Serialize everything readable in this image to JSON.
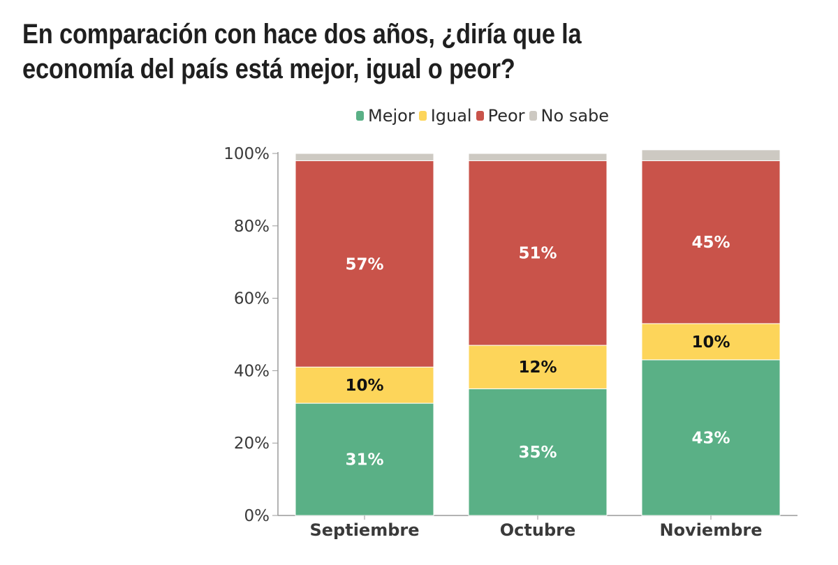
{
  "chart_data": {
    "type": "bar",
    "stacked": true,
    "title": "En comparación con hace dos años, ¿diría que la economía del país está mejor, igual o peor?",
    "categories": [
      "Septiembre",
      "Octubre",
      "Noviembre"
    ],
    "series": [
      {
        "name": "Mejor",
        "color": "#5ab086",
        "values": [
          31,
          35,
          43
        ],
        "labels": [
          "31%",
          "35%",
          "43%"
        ],
        "label_color": "#ffffff"
      },
      {
        "name": "Igual",
        "color": "#fdd55a",
        "values": [
          10,
          12,
          10
        ],
        "labels": [
          "10%",
          "12%",
          "10%"
        ],
        "label_color": "#111111"
      },
      {
        "name": "Peor",
        "color": "#c9534a",
        "values": [
          57,
          51,
          45
        ],
        "labels": [
          "57%",
          "51%",
          "45%"
        ],
        "label_color": "#ffffff"
      },
      {
        "name": "No sabe",
        "color": "#cdc9c2",
        "values": [
          2,
          2,
          3
        ],
        "labels": [
          "",
          "",
          ""
        ],
        "label_color": "#111111"
      }
    ],
    "ylim": [
      0,
      100
    ],
    "yticks": [
      "0%",
      "20%",
      "40%",
      "60%",
      "80%",
      "100%"
    ],
    "ytick_values": [
      0,
      20,
      40,
      60,
      80,
      100
    ],
    "xlabel": "",
    "ylabel": "",
    "legend": "top-center"
  }
}
